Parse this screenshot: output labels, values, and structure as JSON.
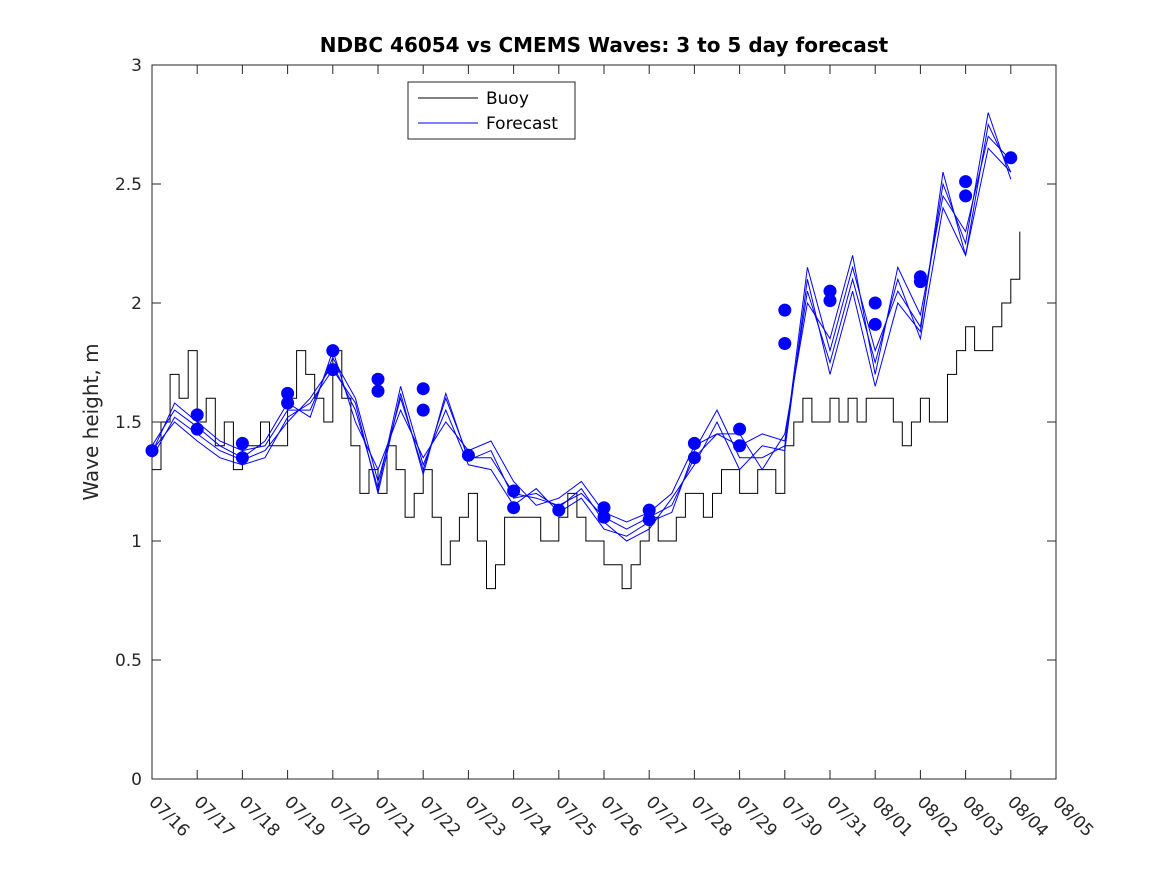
{
  "chart_data": {
    "type": "line",
    "title": "NDBC 46054 vs CMEMS Waves: 3 to 5 day forecast",
    "xlabel": "",
    "ylabel": "Wave height, m",
    "xlim": [
      "07/16",
      "08/05"
    ],
    "ylim": [
      0,
      3
    ],
    "yticks": [
      0,
      0.5,
      1,
      1.5,
      2,
      2.5,
      3
    ],
    "xtick_labels": [
      "07/16",
      "07/17",
      "07/18",
      "07/19",
      "07/20",
      "07/21",
      "07/22",
      "07/23",
      "07/24",
      "07/25",
      "07/26",
      "07/27",
      "07/28",
      "07/29",
      "07/30",
      "07/31",
      "08/01",
      "08/02",
      "08/03",
      "08/04",
      "08/05"
    ],
    "grid": false,
    "legend": {
      "location": "top-center",
      "entries": [
        "Buoy",
        "Forecast"
      ]
    },
    "colors": {
      "buoy": "#000000",
      "forecast": "#0000ff"
    },
    "series": [
      {
        "name": "Buoy",
        "x": [
          16.0,
          16.2,
          16.4,
          16.6,
          16.8,
          17.0,
          17.2,
          17.4,
          17.6,
          17.8,
          18.0,
          18.2,
          18.4,
          18.6,
          18.8,
          19.0,
          19.2,
          19.4,
          19.6,
          19.8,
          20.0,
          20.2,
          20.4,
          20.6,
          20.8,
          21.0,
          21.2,
          21.4,
          21.6,
          21.8,
          22.0,
          22.2,
          22.4,
          22.6,
          22.8,
          23.0,
          23.2,
          23.4,
          23.6,
          23.8,
          24.0,
          24.2,
          24.4,
          24.6,
          24.8,
          25.0,
          25.2,
          25.4,
          25.6,
          25.8,
          26.0,
          26.2,
          26.4,
          26.6,
          26.8,
          27.0,
          27.2,
          27.4,
          27.6,
          27.8,
          28.0,
          28.2,
          28.4,
          28.6,
          28.8,
          29.0,
          29.2,
          29.4,
          29.6,
          29.8,
          30.0,
          30.2,
          30.4,
          30.6,
          30.8,
          31.0,
          31.2,
          31.4,
          31.6,
          31.8,
          32.0,
          32.2,
          32.4,
          32.6,
          32.8,
          33.0,
          33.2,
          33.4,
          33.6,
          33.8,
          34.0,
          34.2,
          34.4,
          34.6,
          34.8,
          35.0,
          35.2
        ],
        "values": [
          1.3,
          1.5,
          1.7,
          1.6,
          1.8,
          1.5,
          1.6,
          1.4,
          1.5,
          1.3,
          1.4,
          1.4,
          1.5,
          1.4,
          1.4,
          1.6,
          1.8,
          1.7,
          1.6,
          1.5,
          1.8,
          1.6,
          1.4,
          1.2,
          1.3,
          1.2,
          1.4,
          1.3,
          1.1,
          1.2,
          1.3,
          1.1,
          0.9,
          1.0,
          1.1,
          1.2,
          1.0,
          0.8,
          0.9,
          1.1,
          1.1,
          1.1,
          1.1,
          1.0,
          1.0,
          1.1,
          1.2,
          1.1,
          1.0,
          1.0,
          0.9,
          0.9,
          0.8,
          0.9,
          1.0,
          1.1,
          1.0,
          1.0,
          1.1,
          1.2,
          1.2,
          1.1,
          1.2,
          1.3,
          1.3,
          1.2,
          1.2,
          1.3,
          1.3,
          1.2,
          1.4,
          1.5,
          1.6,
          1.5,
          1.5,
          1.6,
          1.5,
          1.6,
          1.5,
          1.6,
          1.6,
          1.6,
          1.5,
          1.4,
          1.5,
          1.6,
          1.5,
          1.5,
          1.7,
          1.8,
          1.9,
          1.8,
          1.8,
          1.9,
          2.0,
          2.1,
          2.3
        ]
      },
      {
        "name": "Forecast",
        "x": [
          16.0,
          16.5,
          17.0,
          17.5,
          18.0,
          18.5,
          19.0,
          19.5,
          20.0,
          20.5,
          21.0,
          21.5,
          22.0,
          22.5,
          23.0,
          23.5,
          24.0,
          24.5,
          25.0,
          25.5,
          26.0,
          26.5,
          27.0,
          27.5,
          28.0,
          28.5,
          29.0,
          29.5,
          30.0,
          30.5,
          31.0,
          31.5,
          32.0,
          32.5,
          33.0,
          33.5,
          34.0,
          34.5,
          35.0
        ],
        "values": [
          1.37,
          1.58,
          1.5,
          1.42,
          1.38,
          1.4,
          1.55,
          1.55,
          1.77,
          1.6,
          1.25,
          1.6,
          1.3,
          1.6,
          1.35,
          1.35,
          1.2,
          1.18,
          1.15,
          1.2,
          1.1,
          1.05,
          1.1,
          1.15,
          1.35,
          1.45,
          1.4,
          1.45,
          1.42,
          2.05,
          1.75,
          2.1,
          1.75,
          2.1,
          1.85,
          2.4,
          2.2,
          2.75,
          2.55
        ]
      },
      {
        "name": "",
        "x": [
          16.0,
          16.5,
          17.0,
          17.5,
          18.0,
          18.5,
          19.0,
          19.5,
          20.0,
          20.5,
          21.0,
          21.5,
          22.0,
          22.5,
          23.0,
          23.5,
          24.0,
          24.5,
          25.0,
          25.5,
          26.0,
          26.5,
          27.0,
          27.5,
          28.0,
          28.5,
          29.0,
          29.5,
          30.0,
          30.5,
          31.0,
          31.5,
          32.0,
          32.5,
          33.0,
          33.5,
          34.0,
          34.5,
          35.0
        ],
        "values": [
          1.35,
          1.52,
          1.45,
          1.38,
          1.34,
          1.38,
          1.5,
          1.6,
          1.74,
          1.55,
          1.22,
          1.65,
          1.32,
          1.55,
          1.32,
          1.3,
          1.15,
          1.22,
          1.12,
          1.18,
          1.05,
          1.02,
          1.08,
          1.12,
          1.38,
          1.55,
          1.35,
          1.35,
          1.4,
          2.15,
          1.8,
          2.15,
          1.8,
          2.05,
          1.9,
          2.5,
          2.25,
          2.8,
          2.52
        ]
      },
      {
        "name": "",
        "x": [
          16.0,
          16.5,
          17.0,
          17.5,
          18.0,
          18.5,
          19.0,
          19.5,
          20.0,
          20.5,
          21.0,
          21.5,
          22.0,
          22.5,
          23.0,
          23.5,
          24.0,
          24.5,
          25.0,
          25.5,
          26.0,
          26.5,
          27.0,
          27.5,
          28.0,
          28.5,
          29.0,
          29.5,
          30.0,
          30.5,
          31.0,
          31.5,
          32.0,
          32.5,
          33.0,
          33.5,
          34.0,
          34.5,
          35.0
        ],
        "values": [
          1.4,
          1.55,
          1.48,
          1.4,
          1.35,
          1.42,
          1.58,
          1.52,
          1.8,
          1.5,
          1.3,
          1.55,
          1.35,
          1.5,
          1.38,
          1.42,
          1.25,
          1.15,
          1.18,
          1.25,
          1.12,
          1.08,
          1.12,
          1.2,
          1.4,
          1.45,
          1.45,
          1.3,
          1.45,
          2.0,
          1.85,
          2.2,
          1.7,
          2.15,
          1.95,
          2.45,
          2.3,
          2.7,
          2.6
        ]
      },
      {
        "name": "",
        "x": [
          16.0,
          16.5,
          17.0,
          17.5,
          18.0,
          18.5,
          19.0,
          19.5,
          20.0,
          20.5,
          21.0,
          21.5,
          22.0,
          22.5,
          23.0,
          23.5,
          24.0,
          24.5,
          25.0,
          25.5,
          26.0,
          26.5,
          27.0,
          27.5,
          28.0,
          28.5,
          29.0,
          29.5,
          30.0,
          30.5,
          31.0,
          31.5,
          32.0,
          32.5,
          33.0,
          33.5,
          34.0,
          34.5,
          35.0
        ],
        "values": [
          1.38,
          1.5,
          1.42,
          1.35,
          1.32,
          1.35,
          1.52,
          1.58,
          1.72,
          1.58,
          1.2,
          1.62,
          1.28,
          1.62,
          1.34,
          1.38,
          1.18,
          1.2,
          1.14,
          1.22,
          1.08,
          1.0,
          1.05,
          1.18,
          1.32,
          1.5,
          1.3,
          1.4,
          1.38,
          2.1,
          1.7,
          2.05,
          1.65,
          2.0,
          1.88,
          2.55,
          2.2,
          2.65,
          2.55
        ]
      }
    ],
    "markers": {
      "x": [
        16.0,
        17.0,
        17.0,
        18.0,
        18.0,
        19.0,
        19.0,
        20.0,
        20.0,
        21.0,
        21.0,
        22.0,
        22.0,
        23.0,
        24.0,
        24.0,
        25.0,
        26.0,
        26.0,
        27.0,
        27.0,
        28.0,
        28.0,
        29.0,
        29.0,
        30.0,
        30.0,
        31.0,
        31.0,
        32.0,
        32.0,
        33.0,
        33.0,
        34.0,
        34.0,
        35.0
      ],
      "values": [
        1.38,
        1.53,
        1.47,
        1.41,
        1.35,
        1.62,
        1.58,
        1.8,
        1.72,
        1.68,
        1.63,
        1.64,
        1.55,
        1.36,
        1.21,
        1.14,
        1.13,
        1.14,
        1.1,
        1.13,
        1.09,
        1.41,
        1.35,
        1.47,
        1.4,
        1.97,
        1.83,
        2.05,
        2.01,
        2.0,
        1.91,
        2.11,
        2.09,
        2.51,
        2.45,
        2.61
      ]
    }
  }
}
